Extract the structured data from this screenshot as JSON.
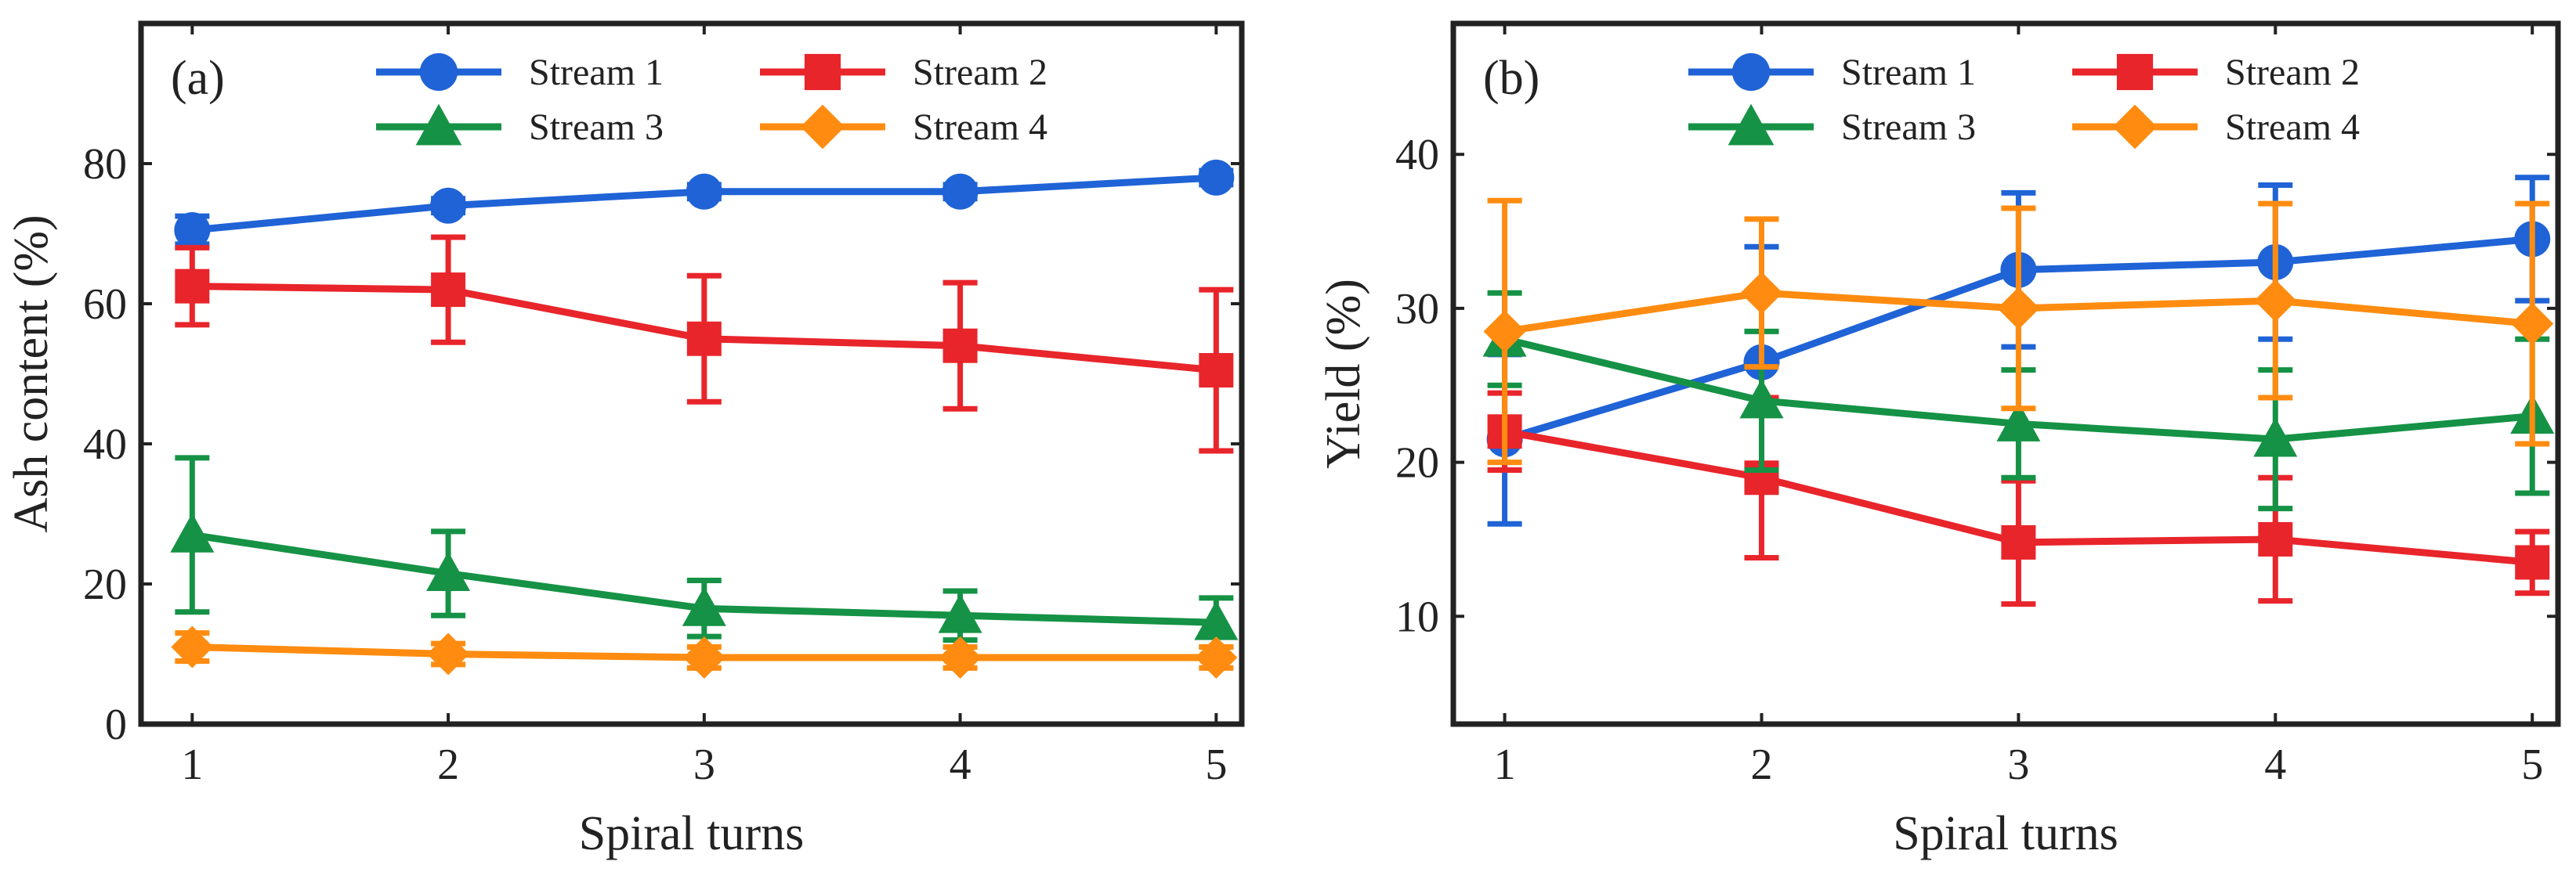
{
  "chart_data": [
    {
      "type": "line",
      "panel_label": "(a)",
      "xlabel": "Spiral turns",
      "ylabel": "Ash content (%)",
      "x": [
        1,
        2,
        3,
        4,
        5
      ],
      "xlim": [
        0.8,
        5.1
      ],
      "ylim": [
        0,
        100
      ],
      "yticks": [
        0,
        20,
        40,
        60,
        80
      ],
      "legend": "top-center, 2 columns",
      "series": [
        {
          "name": "Stream 1",
          "color": "#1f63d6",
          "marker": "circle",
          "values": [
            70.5,
            74,
            76,
            76,
            78
          ],
          "errors": [
            2,
            1,
            1,
            1,
            1
          ]
        },
        {
          "name": "Stream 2",
          "color": "#e8252b",
          "marker": "square",
          "values": [
            62.5,
            62,
            55,
            54,
            50.5
          ],
          "errors": [
            5.5,
            7.5,
            9,
            9,
            11.5
          ]
        },
        {
          "name": "Stream 3",
          "color": "#159245",
          "marker": "triangle",
          "values": [
            27,
            21.5,
            16.5,
            15.5,
            14.5
          ],
          "errors": [
            11,
            6,
            4,
            3.5,
            3.5
          ]
        },
        {
          "name": "Stream 4",
          "color": "#ff8c10",
          "marker": "diamond",
          "values": [
            11,
            10,
            9.5,
            9.5,
            9.5
          ],
          "errors": [
            2,
            1.5,
            1.5,
            1.5,
            1.5
          ]
        }
      ]
    },
    {
      "type": "line",
      "panel_label": "(b)",
      "xlabel": "Spiral turns",
      "ylabel": "Yield (%)",
      "x": [
        1,
        2,
        3,
        4,
        5
      ],
      "xlim": [
        0.8,
        5.1
      ],
      "ylim": [
        3,
        48.5
      ],
      "yticks": [
        10,
        20,
        30,
        40
      ],
      "legend": "top-center, 2 columns",
      "series": [
        {
          "name": "Stream 1",
          "color": "#1f63d6",
          "marker": "circle",
          "values": [
            21.5,
            26.5,
            32.5,
            33,
            34.5
          ],
          "errors": [
            5.5,
            7.5,
            5,
            5,
            4
          ]
        },
        {
          "name": "Stream 2",
          "color": "#e8252b",
          "marker": "square",
          "values": [
            22,
            19,
            14.8,
            15,
            13.5
          ],
          "errors": [
            2.5,
            5.2,
            4,
            4,
            2
          ]
        },
        {
          "name": "Stream 3",
          "color": "#159245",
          "marker": "triangle",
          "values": [
            28,
            24,
            22.5,
            21.5,
            23
          ],
          "errors": [
            3,
            4.5,
            3.5,
            4.5,
            5
          ]
        },
        {
          "name": "Stream 4",
          "color": "#ff8c10",
          "marker": "diamond",
          "values": [
            28.5,
            31,
            30,
            30.5,
            29
          ],
          "errors": [
            8.5,
            4.8,
            6.5,
            6.3,
            7.8
          ]
        }
      ]
    }
  ]
}
